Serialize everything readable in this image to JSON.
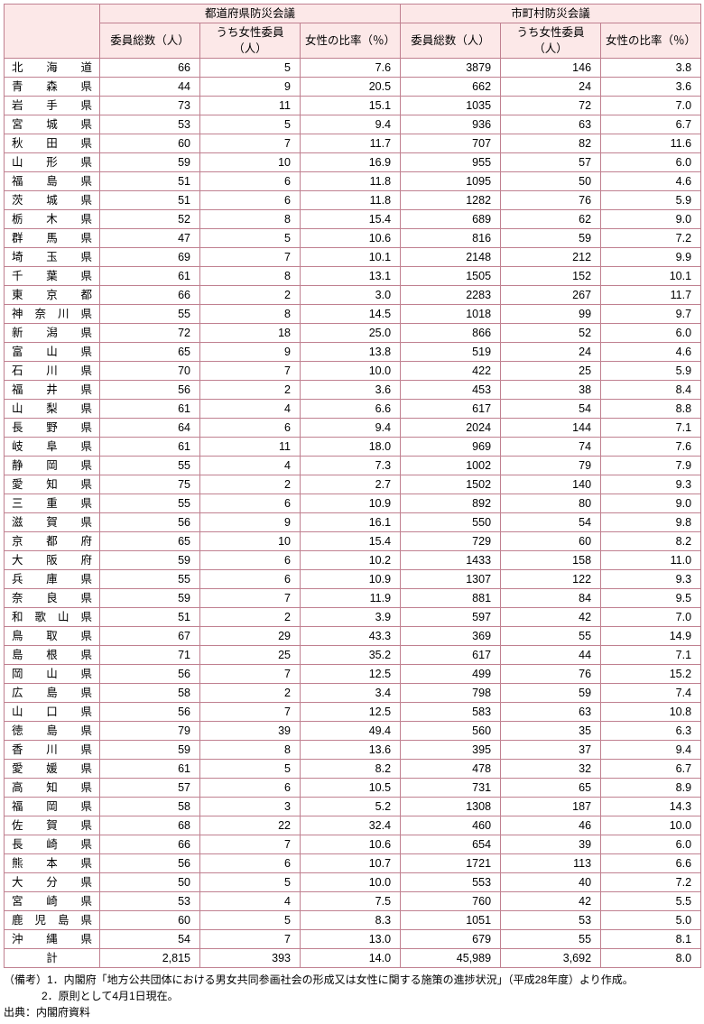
{
  "header": {
    "group1": "都道府県防災会議",
    "group2": "市町村防災会議",
    "col1": "委員総数（人）",
    "col2": "うち女性委員（人）",
    "col3": "女性の比率（％）",
    "col4": "委員総数（人）",
    "col5": "うち女性委員（人）",
    "col6": "女性の比率（％）"
  },
  "rows": [
    {
      "p": "北海道",
      "a": "66",
      "b": "5",
      "c": "7.6",
      "d": "3879",
      "e": "146",
      "f": "3.8"
    },
    {
      "p": "青森県",
      "a": "44",
      "b": "9",
      "c": "20.5",
      "d": "662",
      "e": "24",
      "f": "3.6"
    },
    {
      "p": "岩手県",
      "a": "73",
      "b": "11",
      "c": "15.1",
      "d": "1035",
      "e": "72",
      "f": "7.0"
    },
    {
      "p": "宮城県",
      "a": "53",
      "b": "5",
      "c": "9.4",
      "d": "936",
      "e": "63",
      "f": "6.7"
    },
    {
      "p": "秋田県",
      "a": "60",
      "b": "7",
      "c": "11.7",
      "d": "707",
      "e": "82",
      "f": "11.6"
    },
    {
      "p": "山形県",
      "a": "59",
      "b": "10",
      "c": "16.9",
      "d": "955",
      "e": "57",
      "f": "6.0"
    },
    {
      "p": "福島県",
      "a": "51",
      "b": "6",
      "c": "11.8",
      "d": "1095",
      "e": "50",
      "f": "4.6"
    },
    {
      "p": "茨城県",
      "a": "51",
      "b": "6",
      "c": "11.8",
      "d": "1282",
      "e": "76",
      "f": "5.9"
    },
    {
      "p": "栃木県",
      "a": "52",
      "b": "8",
      "c": "15.4",
      "d": "689",
      "e": "62",
      "f": "9.0"
    },
    {
      "p": "群馬県",
      "a": "47",
      "b": "5",
      "c": "10.6",
      "d": "816",
      "e": "59",
      "f": "7.2"
    },
    {
      "p": "埼玉県",
      "a": "69",
      "b": "7",
      "c": "10.1",
      "d": "2148",
      "e": "212",
      "f": "9.9"
    },
    {
      "p": "千葉県",
      "a": "61",
      "b": "8",
      "c": "13.1",
      "d": "1505",
      "e": "152",
      "f": "10.1"
    },
    {
      "p": "東京都",
      "a": "66",
      "b": "2",
      "c": "3.0",
      "d": "2283",
      "e": "267",
      "f": "11.7"
    },
    {
      "p": "神奈川県",
      "a": "55",
      "b": "8",
      "c": "14.5",
      "d": "1018",
      "e": "99",
      "f": "9.7"
    },
    {
      "p": "新潟県",
      "a": "72",
      "b": "18",
      "c": "25.0",
      "d": "866",
      "e": "52",
      "f": "6.0"
    },
    {
      "p": "富山県",
      "a": "65",
      "b": "9",
      "c": "13.8",
      "d": "519",
      "e": "24",
      "f": "4.6"
    },
    {
      "p": "石川県",
      "a": "70",
      "b": "7",
      "c": "10.0",
      "d": "422",
      "e": "25",
      "f": "5.9"
    },
    {
      "p": "福井県",
      "a": "56",
      "b": "2",
      "c": "3.6",
      "d": "453",
      "e": "38",
      "f": "8.4"
    },
    {
      "p": "山梨県",
      "a": "61",
      "b": "4",
      "c": "6.6",
      "d": "617",
      "e": "54",
      "f": "8.8"
    },
    {
      "p": "長野県",
      "a": "64",
      "b": "6",
      "c": "9.4",
      "d": "2024",
      "e": "144",
      "f": "7.1"
    },
    {
      "p": "岐阜県",
      "a": "61",
      "b": "11",
      "c": "18.0",
      "d": "969",
      "e": "74",
      "f": "7.6"
    },
    {
      "p": "静岡県",
      "a": "55",
      "b": "4",
      "c": "7.3",
      "d": "1002",
      "e": "79",
      "f": "7.9"
    },
    {
      "p": "愛知県",
      "a": "75",
      "b": "2",
      "c": "2.7",
      "d": "1502",
      "e": "140",
      "f": "9.3"
    },
    {
      "p": "三重県",
      "a": "55",
      "b": "6",
      "c": "10.9",
      "d": "892",
      "e": "80",
      "f": "9.0"
    },
    {
      "p": "滋賀県",
      "a": "56",
      "b": "9",
      "c": "16.1",
      "d": "550",
      "e": "54",
      "f": "9.8"
    },
    {
      "p": "京都府",
      "a": "65",
      "b": "10",
      "c": "15.4",
      "d": "729",
      "e": "60",
      "f": "8.2"
    },
    {
      "p": "大阪府",
      "a": "59",
      "b": "6",
      "c": "10.2",
      "d": "1433",
      "e": "158",
      "f": "11.0"
    },
    {
      "p": "兵庫県",
      "a": "55",
      "b": "6",
      "c": "10.9",
      "d": "1307",
      "e": "122",
      "f": "9.3"
    },
    {
      "p": "奈良県",
      "a": "59",
      "b": "7",
      "c": "11.9",
      "d": "881",
      "e": "84",
      "f": "9.5"
    },
    {
      "p": "和歌山県",
      "a": "51",
      "b": "2",
      "c": "3.9",
      "d": "597",
      "e": "42",
      "f": "7.0"
    },
    {
      "p": "鳥取県",
      "a": "67",
      "b": "29",
      "c": "43.3",
      "d": "369",
      "e": "55",
      "f": "14.9"
    },
    {
      "p": "島根県",
      "a": "71",
      "b": "25",
      "c": "35.2",
      "d": "617",
      "e": "44",
      "f": "7.1"
    },
    {
      "p": "岡山県",
      "a": "56",
      "b": "7",
      "c": "12.5",
      "d": "499",
      "e": "76",
      "f": "15.2"
    },
    {
      "p": "広島県",
      "a": "58",
      "b": "2",
      "c": "3.4",
      "d": "798",
      "e": "59",
      "f": "7.4"
    },
    {
      "p": "山口県",
      "a": "56",
      "b": "7",
      "c": "12.5",
      "d": "583",
      "e": "63",
      "f": "10.8"
    },
    {
      "p": "徳島県",
      "a": "79",
      "b": "39",
      "c": "49.4",
      "d": "560",
      "e": "35",
      "f": "6.3"
    },
    {
      "p": "香川県",
      "a": "59",
      "b": "8",
      "c": "13.6",
      "d": "395",
      "e": "37",
      "f": "9.4"
    },
    {
      "p": "愛媛県",
      "a": "61",
      "b": "5",
      "c": "8.2",
      "d": "478",
      "e": "32",
      "f": "6.7"
    },
    {
      "p": "高知県",
      "a": "57",
      "b": "6",
      "c": "10.5",
      "d": "731",
      "e": "65",
      "f": "8.9"
    },
    {
      "p": "福岡県",
      "a": "58",
      "b": "3",
      "c": "5.2",
      "d": "1308",
      "e": "187",
      "f": "14.3"
    },
    {
      "p": "佐賀県",
      "a": "68",
      "b": "22",
      "c": "32.4",
      "d": "460",
      "e": "46",
      "f": "10.0"
    },
    {
      "p": "長崎県",
      "a": "66",
      "b": "7",
      "c": "10.6",
      "d": "654",
      "e": "39",
      "f": "6.0"
    },
    {
      "p": "熊本県",
      "a": "56",
      "b": "6",
      "c": "10.7",
      "d": "1721",
      "e": "113",
      "f": "6.6"
    },
    {
      "p": "大分県",
      "a": "50",
      "b": "5",
      "c": "10.0",
      "d": "553",
      "e": "40",
      "f": "7.2"
    },
    {
      "p": "宮崎県",
      "a": "53",
      "b": "4",
      "c": "7.5",
      "d": "760",
      "e": "42",
      "f": "5.5"
    },
    {
      "p": "鹿児島県",
      "a": "60",
      "b": "5",
      "c": "8.3",
      "d": "1051",
      "e": "53",
      "f": "5.0"
    },
    {
      "p": "沖縄県",
      "a": "54",
      "b": "7",
      "c": "13.0",
      "d": "679",
      "e": "55",
      "f": "8.1"
    }
  ],
  "total": {
    "p": "計",
    "a": "2,815",
    "b": "393",
    "c": "14.0",
    "d": "45,989",
    "e": "3,692",
    "f": "8.0"
  },
  "notes": {
    "n1": "（備考）1．内閣府「地方公共団体における男女共同参画社会の形成又は女性に関する施策の進捗状況」（平成28年度）より作成。",
    "n2": "2．原則として4月1日現在。",
    "src": "出典：内閣府資料"
  }
}
